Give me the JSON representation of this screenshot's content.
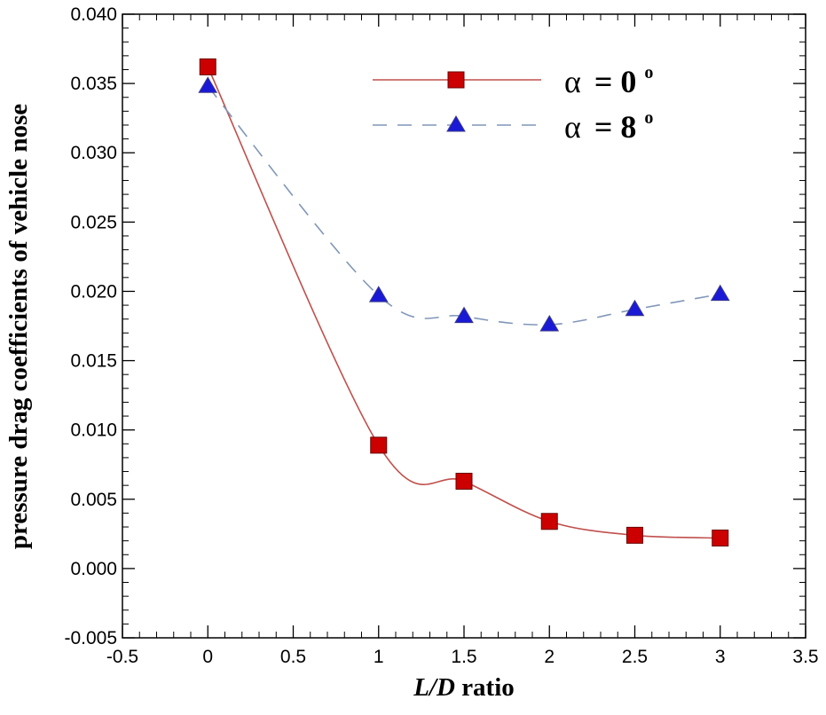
{
  "chart_data": {
    "type": "line",
    "xlabel": "L/D ratio",
    "xlabel_parts": {
      "italic": "L/D",
      "rest": " ratio"
    },
    "ylabel": "pressure drag coefficients of vehicle nose",
    "xlim": [
      -0.5,
      3.5
    ],
    "ylim": [
      -0.005,
      0.04
    ],
    "xticks": [
      -0.5,
      0,
      0.5,
      1,
      1.5,
      2,
      2.5,
      3,
      3.5
    ],
    "xtick_labels": [
      "-0.5",
      "0",
      "0.5",
      "1",
      "1.5",
      "2",
      "2.5",
      "3",
      "3.5"
    ],
    "yticks": [
      -0.005,
      0,
      0.005,
      0.01,
      0.015,
      0.02,
      0.025,
      0.03,
      0.035,
      0.04
    ],
    "ytick_labels": [
      "-0.005",
      "0.000",
      "0.005",
      "0.010",
      "0.015",
      "0.020",
      "0.025",
      "0.030",
      "0.035",
      "0.040"
    ],
    "grid": false,
    "legend_position": "top-right",
    "series": [
      {
        "name": "α = 0°",
        "name_symbol": "α",
        "name_value": "= 0",
        "name_unit": "o",
        "color": "#c0504d",
        "marker_color": "#cc0000",
        "marker": "square",
        "line_style": "solid",
        "x": [
          0,
          1,
          1.5,
          2,
          2.5,
          3
        ],
        "y": [
          0.0362,
          0.0089,
          0.0063,
          0.0034,
          0.0024,
          0.0022
        ]
      },
      {
        "name": "α = 8°",
        "name_symbol": "α",
        "name_value": "= 8",
        "name_unit": "o",
        "color": "#8096b8",
        "marker_color": "#1a1ad6",
        "marker": "triangle",
        "line_style": "dashed",
        "x": [
          0,
          1,
          1.5,
          2,
          2.5,
          3
        ],
        "y": [
          0.0348,
          0.0197,
          0.0182,
          0.0176,
          0.0187,
          0.0198
        ]
      }
    ]
  }
}
